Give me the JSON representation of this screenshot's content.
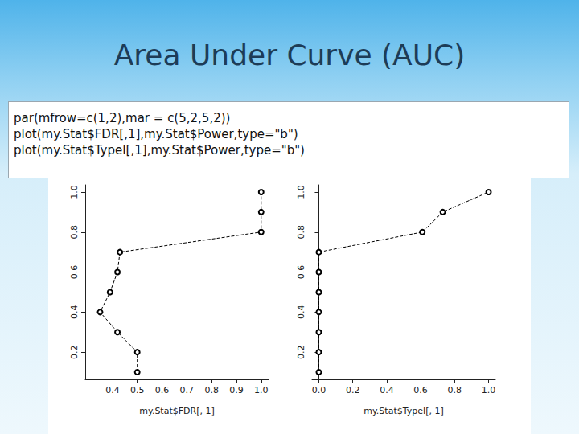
{
  "slide": {
    "title": "Area Under Curve (AUC)",
    "code": [
      "par(mfrow=c(1,2),mar = c(5,2,5,2))",
      "plot(my.Stat$FDR[,1],my.Stat$Power,type=\"b\")",
      "plot(my.Stat$TypeI[,1],my.Stat$Power,type=\"b\")"
    ]
  },
  "chart_data": [
    {
      "type": "line",
      "x_label": "my.Stat$FDR[, 1]",
      "x": [
        0.5,
        0.5,
        0.42,
        0.35,
        0.39,
        0.42,
        0.43,
        1.0,
        1.0,
        1.0
      ],
      "values": [
        0.1,
        0.2,
        0.3,
        0.4,
        0.5,
        0.6,
        0.7,
        0.8,
        0.9,
        1.0
      ],
      "color": "#000000",
      "marker": "circle",
      "line_style": "dashed",
      "grid": false,
      "xlim": [
        0.29,
        1.03
      ],
      "xticks": [
        0.4,
        0.5,
        0.6,
        0.7,
        0.8,
        0.9,
        {
          "value": 1,
          "label": "1.0"
        }
      ],
      "ylim": [
        0.064,
        1.036
      ],
      "yticks": [
        0.2,
        0.4,
        0.6,
        0.8,
        {
          "value": 1,
          "label": "1.0"
        }
      ]
    },
    {
      "type": "line",
      "x_label": "my.Stat$TypeI[, 1]",
      "x": [
        0,
        0,
        0,
        0,
        0,
        0,
        0,
        0.61,
        0.73,
        1.0
      ],
      "values": [
        0.1,
        0.2,
        0.3,
        0.4,
        0.5,
        0.6,
        0.7,
        0.8,
        0.9,
        1.0
      ],
      "color": "#000000",
      "marker": "circle",
      "line_style": "dashed",
      "grid": false,
      "xlim": [
        -0.04,
        1.04
      ],
      "xticks": [
        {
          "value": 0,
          "label": "0.0"
        },
        0.2,
        0.4,
        0.6,
        0.8,
        {
          "value": 1,
          "label": "1.0"
        }
      ],
      "ylim": [
        0.064,
        1.036
      ],
      "yticks": [
        0.2,
        0.4,
        0.6,
        0.8,
        {
          "value": 1,
          "label": "1.0"
        }
      ]
    }
  ]
}
